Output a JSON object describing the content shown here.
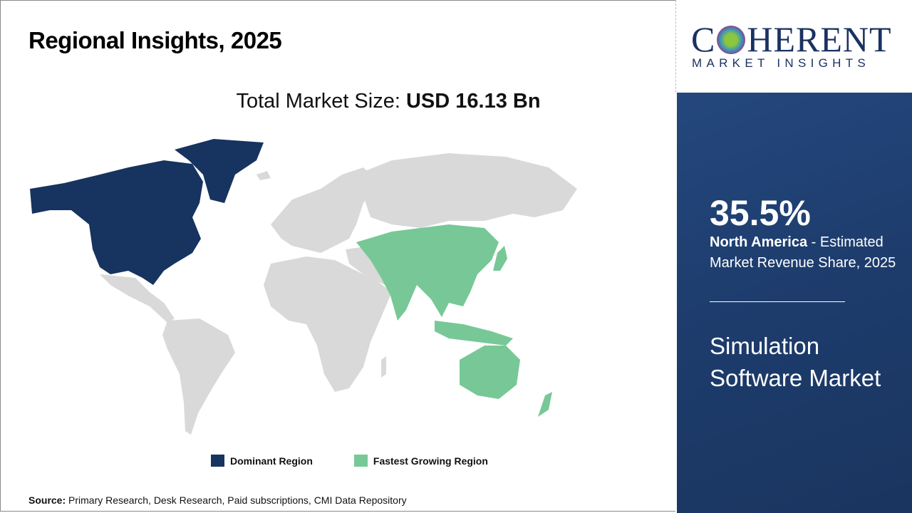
{
  "header": {
    "title": "Regional Insights, 2025"
  },
  "total": {
    "label": "Total Market Size: ",
    "value": "USD 16.13 Bn"
  },
  "map": {
    "dominant_regions": [
      "North America"
    ],
    "fastest_growing_regions": [
      "Asia Pacific"
    ]
  },
  "legend": [
    {
      "label": "Dominant Region",
      "color": "#17335f"
    },
    {
      "label": "Fastest Growing Region",
      "color": "#77c896"
    }
  ],
  "colors": {
    "dominant": "#17335f",
    "fastest": "#77c896",
    "other": "#d9d9d9",
    "panel": "#1f3d6e"
  },
  "source": {
    "label": "Source:",
    "text": " Primary Research, Desk Research, Paid subscriptions, CMI Data Repository"
  },
  "logo": {
    "name": "COHERENT",
    "tagline": "MARKET INSIGHTS"
  },
  "panel": {
    "percent": "35.5%",
    "region": "North America",
    "desc": " - Estimated Market Revenue Share, 2025",
    "market": "Simulation Software Market"
  }
}
